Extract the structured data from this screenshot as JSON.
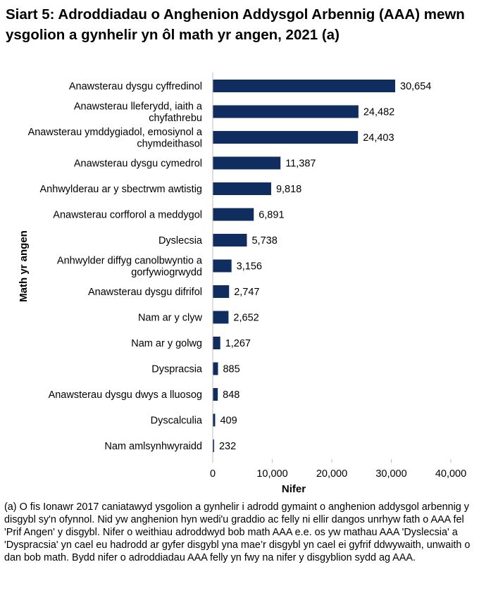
{
  "title": "Siart 5: Adroddiadau o Anghenion Addysgol Arbennig (AAA) mewn ysgolion a gynhelir yn ôl math yr angen, 2021 (a)",
  "footnote": "(a) O fis Ionawr 2017 caniatawyd ysgolion a gynhelir i adrodd gymaint o anghenion addysgol arbennig y disgybl sy'n ofynnol. Nid yw anghenion hyn wedi'u graddio ac felly ni ellir dangos unrhyw fath o AAA fel 'Prif Angen' y disgybl. Nifer o weithiau adroddwyd bob math AAA e.e. os yw mathau AAA 'Dyslecsia' a 'Dyspracsia' yn cael eu hadrodd ar gyfer disgybl yna mae’r disgybl yn cael ei gyfrif ddwywaith, unwaith o dan bob math. Bydd nifer o adroddiadau AAA felly yn fwy na nifer y disgyblion sydd ag AAA.",
  "chart_data": {
    "type": "bar",
    "orientation": "horizontal",
    "xlabel": "Nifer",
    "ylabel": "Math yr angen",
    "xlim": [
      0,
      40000
    ],
    "xticks": [
      0,
      10000,
      20000,
      30000,
      40000
    ],
    "xtick_labels": [
      "0",
      "10,000",
      "20,000",
      "30,000",
      "40,000"
    ],
    "bar_color": "#0f2e5f",
    "categories": [
      [
        "Anawsterau dysgu cyffredinol"
      ],
      [
        "Anawsterau lleferydd, iaith a",
        "chyfathrebu"
      ],
      [
        "Anawsterau ymddygiadol, emosiynol a",
        "chymdeithasol"
      ],
      [
        "Anawsterau dysgu cymedrol"
      ],
      [
        "Anhwylderau ar y sbectrwm awtistig"
      ],
      [
        "Anawsterau corfforol a meddygol"
      ],
      [
        "Dyslecsia"
      ],
      [
        "Anhwylder diffyg canolbwyntio a",
        "gorfywiogrwydd"
      ],
      [
        "Anawsterau dysgu difrifol"
      ],
      [
        "Nam ar y clyw"
      ],
      [
        "Nam ar y golwg"
      ],
      [
        "Dyspracsia"
      ],
      [
        "Anawsterau dysgu dwys a lluosog"
      ],
      [
        "Dyscalculia"
      ],
      [
        "Nam amlsynhwyraidd"
      ]
    ],
    "values": [
      30654,
      24482,
      24403,
      11387,
      9818,
      6891,
      5738,
      3156,
      2747,
      2652,
      1267,
      885,
      848,
      409,
      232
    ],
    "value_labels": [
      "30,654",
      "24,482",
      "24,403",
      "11,387",
      "9,818",
      "6,891",
      "5,738",
      "3,156",
      "2,747",
      "2,652",
      "1,267",
      "885",
      "848",
      "409",
      "232"
    ]
  }
}
